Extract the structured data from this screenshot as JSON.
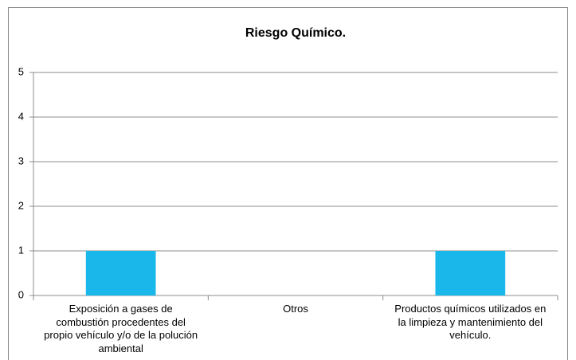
{
  "chart_data": {
    "type": "bar",
    "title": "Riesgo Químico.",
    "categories": [
      "Exposición a gases de combustión procedentes del propio vehículo y/o de la polución ambiental",
      "Otros",
      "Productos químicos utilizados en la limpieza y mantenimiento del vehículo."
    ],
    "values": [
      1,
      0,
      1
    ],
    "color": "#1ab7ea",
    "ylim": [
      0,
      5
    ],
    "yticks": [
      0,
      1,
      2,
      3,
      4,
      5
    ],
    "grid": true
  }
}
